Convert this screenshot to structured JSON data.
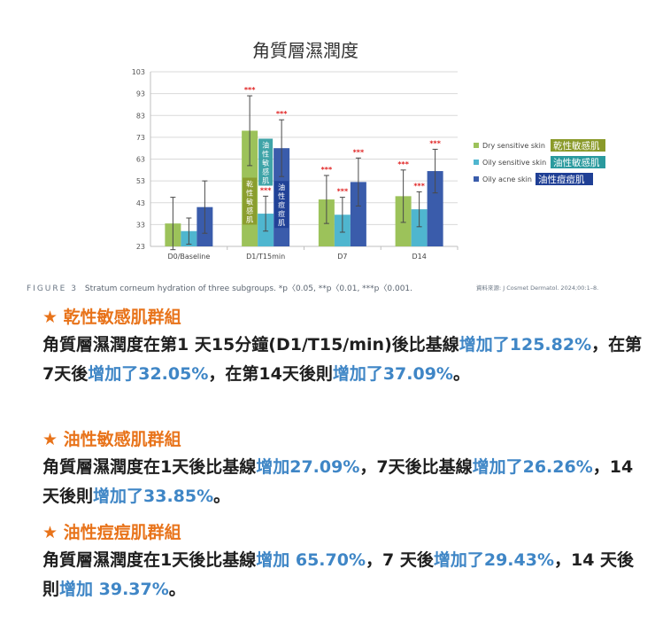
{
  "chart_data": {
    "type": "bar",
    "title": "角質層濕潤度",
    "categories": [
      "D0/Baseline",
      "D1/T15min",
      "D7",
      "D14"
    ],
    "ylim": [
      23,
      103
    ],
    "yticks": [
      23,
      33,
      43,
      53,
      63,
      73,
      83,
      93,
      103
    ],
    "grid": true,
    "legend_position": "right",
    "series": [
      {
        "name": "Dry sensitive skin",
        "tag": "乾性敏感肌",
        "color": "#9cc25a",
        "tagColor": "#8a9a2a",
        "values": [
          33.5,
          76,
          44.5,
          46
        ],
        "err": [
          12,
          16,
          11,
          12
        ],
        "sig": [
          "",
          "***",
          "***",
          "***"
        ]
      },
      {
        "name": "Oily sensitive skin",
        "tag": "油性敏感肌",
        "color": "#4fb6cf",
        "tagColor": "#2a9a9e",
        "values": [
          30,
          38,
          37.5,
          40
        ],
        "err": [
          6,
          8,
          8,
          8
        ],
        "sig": [
          "",
          "***",
          "***",
          "***"
        ]
      },
      {
        "name": "Oily acne skin",
        "tag": "油性痘痘肌",
        "color": "#3a5cab",
        "tagColor": "#1f3f95",
        "values": [
          41,
          68,
          52.5,
          57.5
        ],
        "err": [
          12,
          13,
          11,
          10
        ],
        "sig": [
          "",
          "***",
          "***",
          "***"
        ]
      }
    ],
    "bar_labels": [
      {
        "category": "D1/T15min",
        "series": 0,
        "text": "乾性敏感肌"
      },
      {
        "category": "D1/T15min",
        "series": 1,
        "text": "油性敏感肌"
      },
      {
        "category": "D1/T15min",
        "series": 2,
        "text": "油性痘痘肌"
      }
    ]
  },
  "caption": {
    "figure_label": "FIGURE 3",
    "text": "Stratum corneum hydration of three subgroups. *p〈0.05, **p〈0.01, ***p〈0.001.",
    "source": "資料來源: J Cosmet Dermatol. 2024;00:1–8."
  },
  "sections": [
    {
      "title": "★ 乾性敏感肌群組",
      "parts": [
        {
          "t": "角質層濕潤度在第1 天15分鐘(D1/T15/min)後比基線",
          "hl": false
        },
        {
          "t": "增加了125.82%",
          "hl": true
        },
        {
          "t": "，在第7天後",
          "hl": false
        },
        {
          "t": "增加了32.05%",
          "hl": true
        },
        {
          "t": "，在第14天後則",
          "hl": false
        },
        {
          "t": "增加了37.09%",
          "hl": true
        },
        {
          "t": "。",
          "hl": false
        }
      ]
    },
    {
      "title": "★ 油性敏感肌群組",
      "parts": [
        {
          "t": "角質層濕潤度在1天後比基線",
          "hl": false
        },
        {
          "t": "增加27.09%",
          "hl": true
        },
        {
          "t": "，7天後比基線",
          "hl": false
        },
        {
          "t": "增加了26.26%",
          "hl": true
        },
        {
          "t": "，14天後則",
          "hl": false
        },
        {
          "t": "增加了33.85%",
          "hl": true
        },
        {
          "t": "。",
          "hl": false
        }
      ]
    },
    {
      "title": "★ 油性痘痘肌群組",
      "parts": [
        {
          "t": "角質層濕潤度在1天後比基線",
          "hl": false
        },
        {
          "t": "增加 65.70%",
          "hl": true
        },
        {
          "t": "，7 天後",
          "hl": false
        },
        {
          "t": "增加了29.43%",
          "hl": true
        },
        {
          "t": "，14 天後則",
          "hl": false
        },
        {
          "t": "增加 39.37%",
          "hl": true
        },
        {
          "t": "。",
          "hl": false
        }
      ]
    }
  ]
}
